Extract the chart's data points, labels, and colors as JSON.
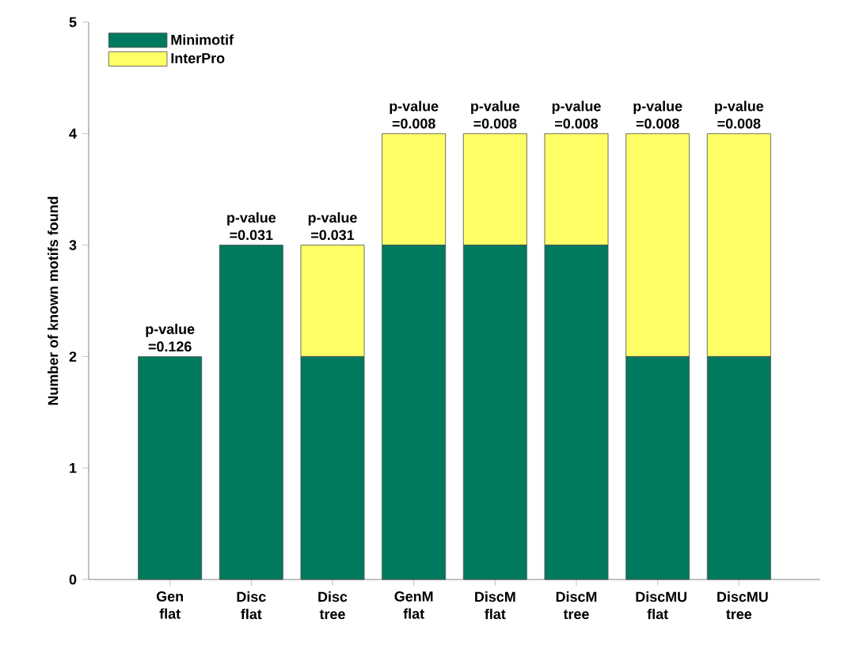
{
  "chart_data": {
    "type": "bar",
    "stacked": true,
    "ylabel": "Number of known motifs found",
    "categories": [
      "Gen flat",
      "Disc flat",
      "Disc tree",
      "GenM flat",
      "DiscM flat",
      "DiscM tree",
      "DiscMU flat",
      "DiscMU tree"
    ],
    "series": [
      {
        "name": "Minimotif",
        "color": "#007a5e",
        "values": [
          2,
          3,
          2,
          3,
          3,
          3,
          2,
          2
        ]
      },
      {
        "name": "InterPro",
        "color": "#ffff66",
        "values": [
          0,
          0,
          1,
          1,
          1,
          1,
          2,
          2
        ]
      }
    ],
    "ylim": [
      0,
      5
    ],
    "yticks": [
      0,
      1,
      2,
      3,
      4,
      5
    ],
    "legend": "top left",
    "grid": false,
    "annotations": [
      {
        "text": "p-value =0.126",
        "x": "Gen flat",
        "y": 2
      },
      {
        "text": "p-value =0.031",
        "x": "Disc flat",
        "y": 3
      },
      {
        "text": "p-value =0.031",
        "x": "Disc tree",
        "y": 3
      },
      {
        "text": "p-value =0.008",
        "x": "GenM flat",
        "y": 4
      },
      {
        "text": "p-value =0.008",
        "x": "DiscM flat",
        "y": 4
      },
      {
        "text": "p-value =0.008",
        "x": "DiscM tree",
        "y": 4
      },
      {
        "text": "p-value =0.008",
        "x": "DiscMU flat",
        "y": 4
      },
      {
        "text": "p-value =0.008",
        "x": "DiscMU tree",
        "y": 4
      }
    ]
  }
}
